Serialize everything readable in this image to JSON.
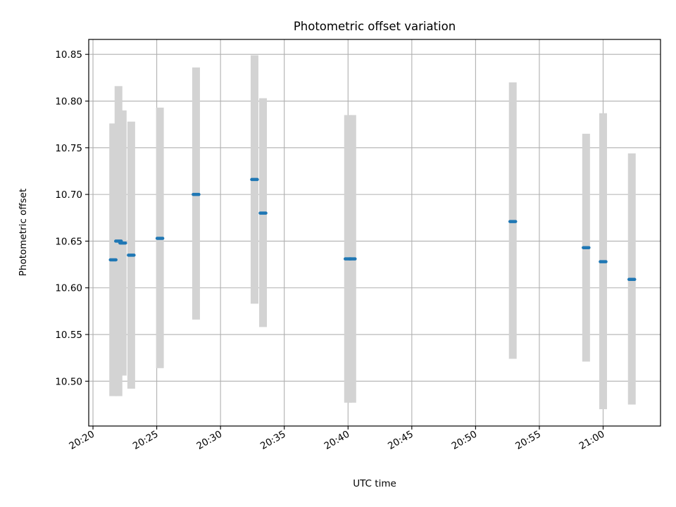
{
  "chart_data": {
    "type": "scatter",
    "title": "Photometric offset variation",
    "xlabel": "UTC time",
    "ylabel": "Photometric offset",
    "x_tick_labels": [
      "20:20",
      "20:25",
      "20:30",
      "20:35",
      "20:40",
      "20:45",
      "20:50",
      "20:55",
      "21:00"
    ],
    "y_tick_labels": [
      "10.50",
      "10.55",
      "10.60",
      "10.65",
      "10.70",
      "10.75",
      "10.80",
      "10.85"
    ],
    "y_ticks": [
      10.5,
      10.55,
      10.6,
      10.65,
      10.7,
      10.75,
      10.8,
      10.85
    ],
    "xlim": [
      "20:19:40",
      "21:04:30"
    ],
    "ylim": [
      10.452,
      10.866
    ],
    "grid": true,
    "colors": {
      "point": "#1f77b4",
      "error_bar": "#d3d3d3",
      "grid": "#b0b0b0"
    },
    "points": [
      {
        "x": "20:21:35",
        "y": 10.63,
        "y_low": 10.484,
        "y_high": 10.776
      },
      {
        "x": "20:22:00",
        "y": 10.65,
        "y_low": 10.484,
        "y_high": 10.816
      },
      {
        "x": "20:22:20",
        "y": 10.648,
        "y_low": 10.506,
        "y_high": 10.79
      },
      {
        "x": "20:23:00",
        "y": 10.635,
        "y_low": 10.492,
        "y_high": 10.778
      },
      {
        "x": "20:25:15",
        "y": 10.653,
        "y_low": 10.514,
        "y_high": 10.793
      },
      {
        "x": "20:28:05",
        "y": 10.7,
        "y_low": 10.566,
        "y_high": 10.836
      },
      {
        "x": "20:32:40",
        "y": 10.716,
        "y_low": 10.583,
        "y_high": 10.849
      },
      {
        "x": "20:33:20",
        "y": 10.68,
        "y_low": 10.558,
        "y_high": 10.803
      },
      {
        "x": "20:40:00",
        "y": 10.631,
        "y_low": 10.477,
        "y_high": 10.785
      },
      {
        "x": "20:40:20",
        "y": 10.631,
        "y_low": 10.477,
        "y_high": 10.785
      },
      {
        "x": "20:52:55",
        "y": 10.671,
        "y_low": 10.524,
        "y_high": 10.82
      },
      {
        "x": "20:58:40",
        "y": 10.643,
        "y_low": 10.521,
        "y_high": 10.765
      },
      {
        "x": "21:00:00",
        "y": 10.628,
        "y_low": 10.47,
        "y_high": 10.787
      },
      {
        "x": "21:02:15",
        "y": 10.609,
        "y_low": 10.475,
        "y_high": 10.744
      }
    ]
  }
}
